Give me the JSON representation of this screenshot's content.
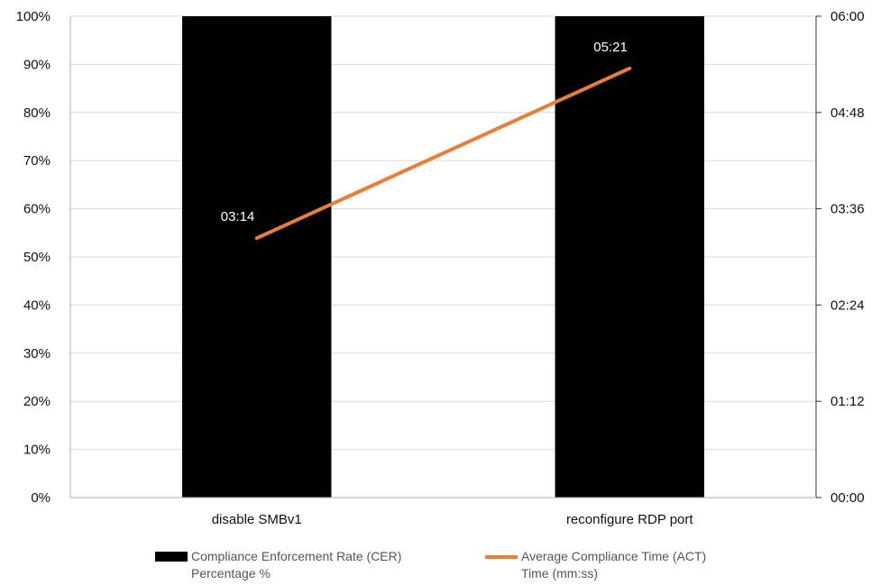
{
  "chart_data": {
    "type": "bar",
    "categories": [
      "disable SMBv1",
      "reconfigure RDP port"
    ],
    "series": [
      {
        "name": "Compliance Enforcement Rate (CER)",
        "subname": "Percentage %",
        "chart_type": "bar",
        "axis": "left",
        "values": [
          100,
          100
        ],
        "color": "#000000"
      },
      {
        "name": "Average Compliance Time (ACT)",
        "subname": "Time (mm:ss)",
        "chart_type": "line",
        "axis": "right",
        "values_seconds": [
          194,
          321
        ],
        "data_labels": [
          "03:14",
          "05:21"
        ],
        "color": "#ED7D31"
      }
    ],
    "y_left": {
      "range": [
        0,
        100
      ],
      "ticks": [
        "0%",
        "10%",
        "20%",
        "30%",
        "40%",
        "50%",
        "60%",
        "70%",
        "80%",
        "90%",
        "100%"
      ]
    },
    "y_right": {
      "range_seconds": [
        0,
        360
      ],
      "ticks": [
        "00:00",
        "01:12",
        "02:24",
        "03:36",
        "04:48",
        "06:00"
      ]
    },
    "grid": true,
    "legend_position": "bottom"
  }
}
